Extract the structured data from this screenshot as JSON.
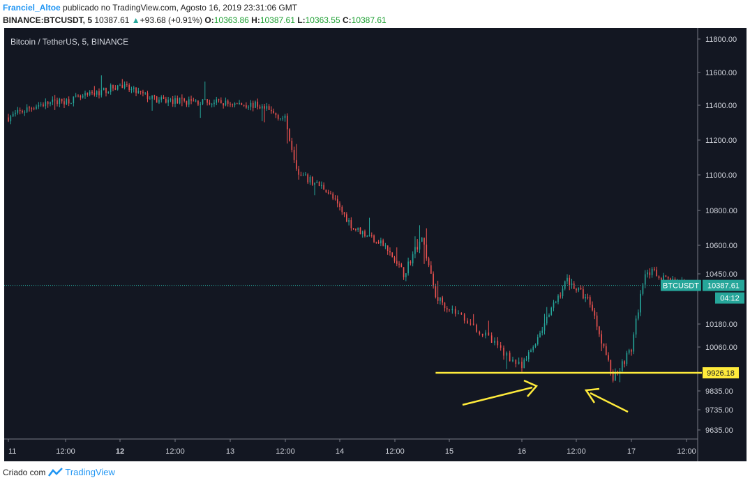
{
  "header": {
    "author": "Franciel_Altoe",
    "published": " publicado no TradingView.com, Agosto 16, 2019 23:31:06 GMT",
    "symbol": "BINANCE:BTCUSDT, 5",
    "last": "10387.61",
    "change": "+93.68 (+0.91%)",
    "o_label": "O:",
    "o": "10363.86",
    "h_label": "H:",
    "h": "10387.61",
    "l_label": "L:",
    "l": "10363.55",
    "c_label": "C:",
    "c": "10387.61"
  },
  "footer": {
    "created_with": "Criado com",
    "brand": "TradingView"
  },
  "colors": {
    "background": "#131722",
    "up": "#26a69a",
    "down": "#ef5350",
    "support": "#ffeb3b",
    "axis_text": "#d1d4dc"
  },
  "chart_data": {
    "type": "candlestick",
    "title": "Bitcoin / TetherUS, 5, BINANCE",
    "y_ticks": [
      "11800.00",
      "11600.00",
      "11400.00",
      "11200.00",
      "11000.00",
      "10800.00",
      "10600.00",
      "10450.00",
      "10180.00",
      "10060.00",
      "9835.00",
      "9735.00",
      "9635.00"
    ],
    "x_ticks": [
      {
        "label": "11",
        "bold": false
      },
      {
        "label": "12:00",
        "bold": false
      },
      {
        "label": "12",
        "bold": true
      },
      {
        "label": "12:00",
        "bold": false
      },
      {
        "label": "13",
        "bold": false
      },
      {
        "label": "12:00",
        "bold": false
      },
      {
        "label": "14",
        "bold": false
      },
      {
        "label": "12:00",
        "bold": false
      },
      {
        "label": "15",
        "bold": false
      },
      {
        "label": "16",
        "bold": false
      },
      {
        "label": "12:00",
        "bold": false
      },
      {
        "label": "17",
        "bold": false
      },
      {
        "label": "12:00",
        "bold": false
      }
    ],
    "price_path": [
      {
        "t": "Aug 11 00:00",
        "p": 11330
      },
      {
        "t": "Aug 11 06:00",
        "p": 11400
      },
      {
        "t": "Aug 11 15:00",
        "p": 11440
      },
      {
        "t": "Aug 12 00:00",
        "p": 11520
      },
      {
        "t": "Aug 12 08:00",
        "p": 11430
      },
      {
        "t": "Aug 12 18:00",
        "p": 11420
      },
      {
        "t": "Aug 13 06:00",
        "p": 11400
      },
      {
        "t": "Aug 13 12:00",
        "p": 11320
      },
      {
        "t": "Aug 13 15:00",
        "p": 11000
      },
      {
        "t": "Aug 13 21:00",
        "p": 10920
      },
      {
        "t": "Aug 14 03:00",
        "p": 10700
      },
      {
        "t": "Aug 14 09:00",
        "p": 10620
      },
      {
        "t": "Aug 14 14:00",
        "p": 10450
      },
      {
        "t": "Aug 14 18:00",
        "p": 10650
      },
      {
        "t": "Aug 14 21:00",
        "p": 10330
      },
      {
        "t": "Aug 15 03:00",
        "p": 10200
      },
      {
        "t": "Aug 15 12:00",
        "p": 9950
      },
      {
        "t": "Aug 15 22:00",
        "p": 10420
      },
      {
        "t": "Aug 16 03:00",
        "p": 10300
      },
      {
        "t": "Aug 16 08:00",
        "p": 9900
      },
      {
        "t": "Aug 16 12:00",
        "p": 10050
      },
      {
        "t": "Aug 16 15:00",
        "p": 10470
      },
      {
        "t": "Aug 16 23:30",
        "p": 10387.61
      }
    ],
    "last_price": {
      "symbol": "BTCUSDT",
      "value": "10387.61",
      "countdown": "04:12"
    },
    "support": {
      "value": "9926.18",
      "from": "Aug 14 21:00",
      "to": "Aug 17 12:00"
    },
    "grid": false,
    "annotations": [
      {
        "type": "arrow",
        "count": 2,
        "color": "#ffeb3b",
        "target": "support"
      }
    ]
  }
}
